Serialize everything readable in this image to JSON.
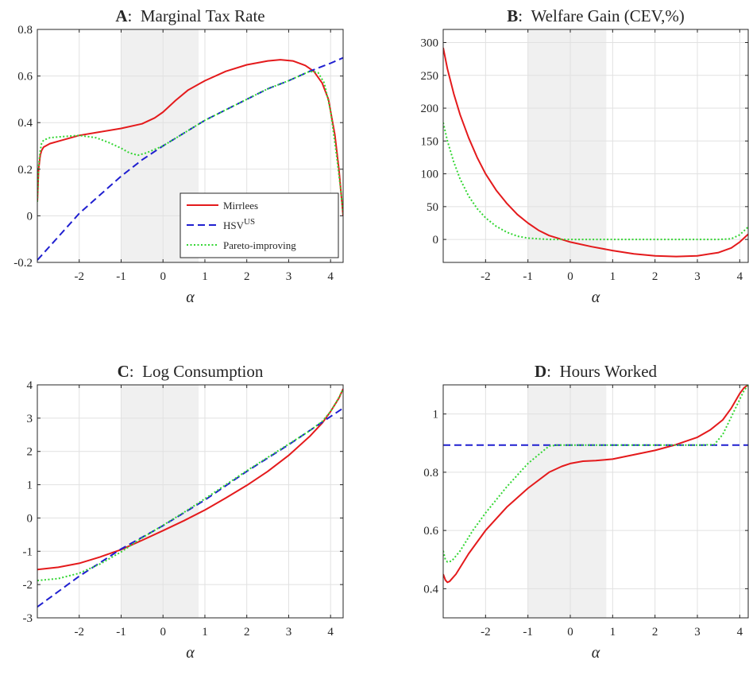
{
  "colors": {
    "mirrlees": "#e41a1c",
    "hsv": "#1f1fd0",
    "pareto": "#33d633",
    "shade": "#f0f0f0"
  },
  "chart_data": [
    {
      "id": "A",
      "type": "line",
      "title_letter": "A",
      "title_text": ":  Marginal Tax Rate",
      "xlabel": "α",
      "xlim": [
        -3,
        4.3
      ],
      "ylim": [
        -0.2,
        0.8
      ],
      "xticks": [
        -2,
        -1,
        0,
        1,
        2,
        3,
        4
      ],
      "yticks": [
        -0.2,
        0,
        0.2,
        0.4,
        0.6,
        0.8
      ],
      "ytick_labels": [
        "-0.2",
        "0",
        "0.2",
        "0.4",
        "0.6",
        "0.8"
      ],
      "shade": [
        -1,
        0.85
      ],
      "legend": {
        "position": "bottom-right",
        "entries": [
          {
            "series": 0,
            "label": "Mirrlees",
            "sup": ""
          },
          {
            "series": 1,
            "label": "HSV",
            "sup": "US"
          },
          {
            "series": 2,
            "label": "Pareto-improving",
            "sup": ""
          }
        ]
      },
      "series": [
        {
          "name": "Mirrlees",
          "style": "solid",
          "x": [
            -3,
            -2.97,
            -2.93,
            -2.9,
            -2.85,
            -2.7,
            -2.4,
            -2,
            -1.5,
            -1,
            -0.5,
            -0.2,
            0,
            0.3,
            0.6,
            1,
            1.5,
            2,
            2.5,
            2.8,
            3.1,
            3.4,
            3.6,
            3.8,
            3.95,
            4.1,
            4.2,
            4.3
          ],
          "y": [
            0.06,
            0.2,
            0.26,
            0.28,
            0.295,
            0.31,
            0.325,
            0.345,
            0.36,
            0.375,
            0.395,
            0.42,
            0.445,
            0.495,
            0.54,
            0.58,
            0.62,
            0.648,
            0.665,
            0.67,
            0.665,
            0.645,
            0.62,
            0.57,
            0.5,
            0.35,
            0.2,
            0.0
          ]
        },
        {
          "name": "HSV",
          "style": "dashed",
          "x": [
            -3,
            -2.5,
            -2,
            -1.5,
            -1,
            -0.5,
            0,
            0.5,
            1,
            1.5,
            2,
            2.5,
            3,
            3.5,
            4,
            4.3
          ],
          "y": [
            -0.19,
            -0.09,
            0.01,
            0.09,
            0.17,
            0.24,
            0.3,
            0.355,
            0.41,
            0.455,
            0.5,
            0.545,
            0.58,
            0.62,
            0.655,
            0.678
          ]
        },
        {
          "name": "Pareto-improving",
          "style": "dotted",
          "x": [
            -3,
            -2.97,
            -2.93,
            -2.9,
            -2.85,
            -2.7,
            -2.4,
            -2,
            -1.6,
            -1.3,
            -1,
            -0.8,
            -0.6,
            -0.4,
            0,
            0.5,
            1,
            1.5,
            2,
            2.5,
            3,
            3.5,
            3.7,
            3.85,
            4,
            4.15,
            4.25,
            4.3
          ],
          "y": [
            0.06,
            0.21,
            0.28,
            0.31,
            0.325,
            0.335,
            0.34,
            0.345,
            0.335,
            0.315,
            0.29,
            0.27,
            0.26,
            0.27,
            0.3,
            0.355,
            0.41,
            0.455,
            0.5,
            0.545,
            0.58,
            0.62,
            0.615,
            0.57,
            0.45,
            0.25,
            0.1,
            0.01
          ]
        }
      ]
    },
    {
      "id": "B",
      "type": "line",
      "title_letter": "B",
      "title_text": ":  Welfare Gain (CEV,%)",
      "xlabel": "α",
      "xlim": [
        -3,
        4.2
      ],
      "ylim": [
        -35,
        320
      ],
      "xticks": [
        -2,
        -1,
        0,
        1,
        2,
        3,
        4
      ],
      "yticks": [
        0,
        50,
        100,
        150,
        200,
        250,
        300
      ],
      "ytick_labels": [
        "0",
        "50",
        "100",
        "150",
        "200",
        "250",
        "300"
      ],
      "shade": [
        -1,
        0.85
      ],
      "series": [
        {
          "name": "Mirrlees",
          "style": "solid",
          "x": [
            -3,
            -2.9,
            -2.75,
            -2.6,
            -2.4,
            -2.2,
            -2,
            -1.75,
            -1.5,
            -1.25,
            -1,
            -0.75,
            -0.5,
            -0.25,
            0,
            0.5,
            1,
            1.5,
            2,
            2.5,
            3,
            3.5,
            3.8,
            4,
            4.2
          ],
          "y": [
            292,
            260,
            222,
            190,
            155,
            125,
            100,
            75,
            55,
            38,
            25,
            14,
            6,
            1,
            -4,
            -11,
            -17,
            -22,
            -25,
            -26,
            -25,
            -20,
            -13,
            -4,
            8
          ]
        },
        {
          "name": "Pareto-improving",
          "style": "dotted",
          "x": [
            -3,
            -2.9,
            -2.75,
            -2.6,
            -2.4,
            -2.2,
            -2,
            -1.75,
            -1.5,
            -1.25,
            -1,
            -0.75,
            -0.5,
            -0.25,
            0,
            1,
            2,
            3,
            3.5,
            3.8,
            4,
            4.2
          ],
          "y": [
            178,
            150,
            118,
            92,
            66,
            47,
            33,
            20,
            11,
            5,
            2,
            1,
            0,
            0,
            0,
            0,
            0,
            0,
            0,
            1,
            7,
            19
          ]
        }
      ]
    },
    {
      "id": "C",
      "type": "line",
      "title_letter": "C",
      "title_text": ":  Log Consumption",
      "xlabel": "α",
      "xlim": [
        -3,
        4.3
      ],
      "ylim": [
        -3,
        4
      ],
      "xticks": [
        -2,
        -1,
        0,
        1,
        2,
        3,
        4
      ],
      "yticks": [
        -3,
        -2,
        -1,
        0,
        1,
        2,
        3,
        4
      ],
      "ytick_labels": [
        "-3",
        "-2",
        "-1",
        "0",
        "1",
        "2",
        "3",
        "4"
      ],
      "shade": [
        -1,
        0.85
      ],
      "series": [
        {
          "name": "Mirrlees",
          "style": "solid",
          "x": [
            -3,
            -2.5,
            -2,
            -1.5,
            -1,
            -0.5,
            0,
            0.5,
            1,
            1.5,
            2,
            2.5,
            3,
            3.5,
            3.8,
            4,
            4.2,
            4.3
          ],
          "y": [
            -1.55,
            -1.48,
            -1.36,
            -1.17,
            -0.95,
            -0.67,
            -0.38,
            -0.08,
            0.24,
            0.6,
            0.98,
            1.4,
            1.88,
            2.45,
            2.85,
            3.2,
            3.6,
            3.88
          ]
        },
        {
          "name": "HSV",
          "style": "dashed",
          "x": [
            -3,
            -2,
            -1,
            0,
            1,
            2,
            3,
            4,
            4.3
          ],
          "y": [
            -2.67,
            -1.75,
            -0.93,
            -0.23,
            0.54,
            1.4,
            2.2,
            3.05,
            3.3
          ]
        },
        {
          "name": "Pareto-improving",
          "style": "dotted",
          "x": [
            -3,
            -2.5,
            -2,
            -1.5,
            -1,
            -0.5,
            0,
            0.5,
            1,
            1.5,
            2,
            2.5,
            3,
            3.5,
            3.8,
            4,
            4.2,
            4.3
          ],
          "y": [
            -1.88,
            -1.82,
            -1.66,
            -1.38,
            -1.02,
            -0.6,
            -0.22,
            0.17,
            0.58,
            1.0,
            1.42,
            1.82,
            2.22,
            2.62,
            2.9,
            3.2,
            3.62,
            3.88
          ]
        }
      ]
    },
    {
      "id": "D",
      "type": "line",
      "title_letter": "D",
      "title_text": ":  Hours Worked",
      "xlabel": "α",
      "xlim": [
        -3,
        4.2
      ],
      "ylim": [
        0.3,
        1.1
      ],
      "xticks": [
        -2,
        -1,
        0,
        1,
        2,
        3,
        4
      ],
      "yticks": [
        0.4,
        0.6,
        0.8,
        1.0
      ],
      "ytick_labels": [
        "0.4",
        "0.6",
        "0.8",
        "1"
      ],
      "shade": [
        -1,
        0.85
      ],
      "series": [
        {
          "name": "Mirrlees",
          "style": "solid",
          "x": [
            -3,
            -2.95,
            -2.9,
            -2.85,
            -2.7,
            -2.4,
            -2,
            -1.5,
            -1,
            -0.5,
            -0.2,
            0,
            0.3,
            0.6,
            1,
            1.5,
            2,
            2.5,
            3,
            3.3,
            3.6,
            3.8,
            4,
            4.1,
            4.2
          ],
          "y": [
            0.45,
            0.43,
            0.422,
            0.425,
            0.45,
            0.52,
            0.6,
            0.68,
            0.745,
            0.8,
            0.82,
            0.83,
            0.838,
            0.84,
            0.845,
            0.86,
            0.875,
            0.895,
            0.92,
            0.945,
            0.98,
            1.02,
            1.07,
            1.09,
            1.1
          ]
        },
        {
          "name": "HSV",
          "style": "dashed",
          "x": [
            -3,
            4.2
          ],
          "y": [
            0.893,
            0.893
          ]
        },
        {
          "name": "Pareto-improving",
          "style": "dotted",
          "x": [
            -3,
            -2.95,
            -2.9,
            -2.8,
            -2.6,
            -2.3,
            -2,
            -1.5,
            -1,
            -0.5,
            -0.3,
            0,
            1,
            2,
            3,
            3.4,
            3.6,
            3.8,
            4,
            4.1,
            4.2
          ],
          "y": [
            0.53,
            0.5,
            0.492,
            0.495,
            0.53,
            0.6,
            0.66,
            0.75,
            0.83,
            0.89,
            0.893,
            0.893,
            0.893,
            0.893,
            0.893,
            0.895,
            0.93,
            0.99,
            1.05,
            1.08,
            1.1
          ]
        }
      ]
    }
  ]
}
